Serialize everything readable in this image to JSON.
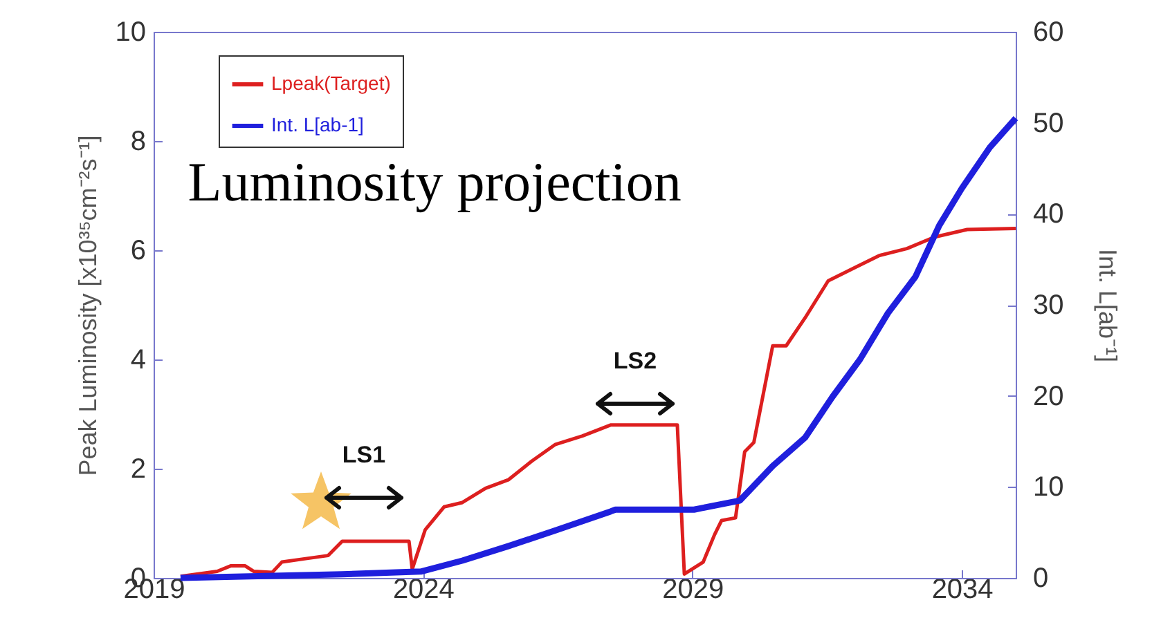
{
  "chart_data": {
    "type": "line",
    "title": "Luminosity projection",
    "ylabel": "Peak Luminosity [x10³⁵cm⁻²s⁻¹]",
    "y2label": "Int. L[ab⁻¹]",
    "xlim": [
      2019,
      2035
    ],
    "xticks": [
      2019,
      2024,
      2029,
      2034
    ],
    "ylim": [
      0,
      10
    ],
    "yticks": [
      0,
      2,
      4,
      6,
      8,
      10
    ],
    "y2lim": [
      0,
      60
    ],
    "y2ticks": [
      0,
      10,
      20,
      30,
      40,
      50,
      60
    ],
    "legend": "top left",
    "grid": false,
    "annotations": [
      "LS1",
      "LS2"
    ],
    "series": [
      {
        "name": "Lpeak(Target)",
        "color": "#dd1f1f",
        "x": [
          2019.5,
          2020.18,
          2020.43,
          2020.7,
          2020.86,
          2021.2,
          2021.38,
          2021.8,
          2022.24,
          2022.5,
          2023.74,
          2023.8,
          2024.04,
          2024.39,
          2024.73,
          2025.16,
          2025.59,
          2026.02,
          2026.45,
          2026.96,
          2027.48,
          2028.72,
          2028.85,
          2029.2,
          2029.41,
          2029.54,
          2029.8,
          2029.97,
          2030.14,
          2030.49,
          2030.74,
          2031.09,
          2031.52,
          2032.03,
          2032.46,
          2032.98,
          2033.49,
          2034.1,
          2035
        ],
        "values": [
          0.03,
          0.12,
          0.22,
          0.22,
          0.12,
          0.1,
          0.29,
          0.35,
          0.41,
          0.67,
          0.67,
          0.16,
          0.88,
          1.3,
          1.38,
          1.64,
          1.8,
          2.14,
          2.44,
          2.6,
          2.8,
          2.8,
          0.07,
          0.29,
          0.79,
          1.05,
          1.1,
          2.31,
          2.48,
          4.25,
          4.25,
          4.76,
          5.44,
          5.69,
          5.9,
          6.03,
          6.24,
          6.38,
          6.4
        ]
      },
      {
        "name": "Int. L[ab-1]",
        "color": "#1f1fdd",
        "axis": "y2",
        "x": [
          2019.5,
          2022.5,
          2023.96,
          2024.73,
          2025.59,
          2026.45,
          2027.48,
          2027.57,
          2029.03,
          2029.88,
          2030.49,
          2031.09,
          2031.6,
          2032.11,
          2032.63,
          2033.14,
          2033.58,
          2034.0,
          2034.52,
          2035
        ],
        "values": [
          0,
          0.4,
          0.7,
          1.9,
          3.5,
          5.2,
          7.3,
          7.5,
          7.5,
          8.5,
          12.3,
          15.4,
          19.9,
          24,
          29.1,
          33.1,
          38.7,
          42.8,
          47.3,
          50.5
        ]
      }
    ]
  }
}
